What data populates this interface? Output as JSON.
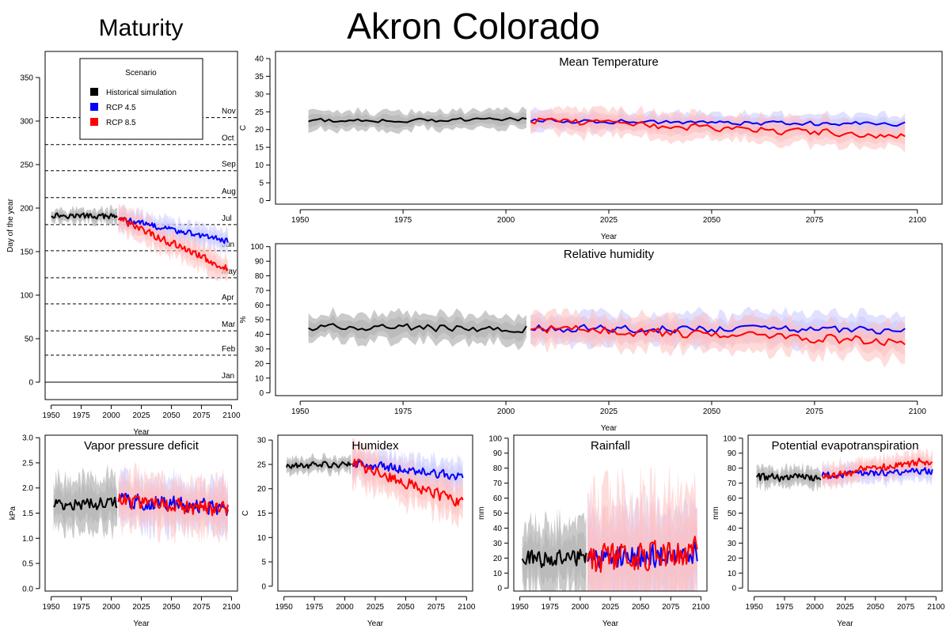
{
  "page": {
    "title": "Akron Colorado",
    "maturity_title": "Maturity"
  },
  "colors": {
    "historical": "#000000",
    "rcp45": "#0000ff",
    "rcp85": "#ff0000",
    "historical_band": "#b8b8b8",
    "rcp45_band": "#c8c8ff",
    "rcp85_band": "#ffc0c0"
  },
  "legend": {
    "title": "Scenario",
    "items": [
      {
        "key": "historical",
        "label": "Historical simulation"
      },
      {
        "key": "rcp45",
        "label": "RCP 4.5"
      },
      {
        "key": "rcp85",
        "label": "RCP 8.5"
      }
    ]
  },
  "chart_data": [
    {
      "id": "maturity",
      "type": "line",
      "title": "",
      "xlabel": "Year",
      "ylabel": "Day of the year",
      "xlim": [
        1945,
        2105
      ],
      "ylim": [
        -20,
        380
      ],
      "xticks": [
        1950,
        1975,
        2000,
        2025,
        2050,
        2075,
        2100
      ],
      "yticks": [
        0,
        50,
        100,
        150,
        200,
        250,
        300,
        350
      ],
      "month_lines": [
        {
          "label": "Jan",
          "day": 0
        },
        {
          "label": "Feb",
          "day": 31
        },
        {
          "label": "Mar",
          "day": 59
        },
        {
          "label": "Apr",
          "day": 90
        },
        {
          "label": "May",
          "day": 120
        },
        {
          "label": "Jun",
          "day": 151
        },
        {
          "label": "Jul",
          "day": 181
        },
        {
          "label": "Aug",
          "day": 212
        },
        {
          "label": "Sep",
          "day": 243
        },
        {
          "label": "Oct",
          "day": 273
        },
        {
          "label": "Nov",
          "day": 304
        }
      ],
      "series": [
        {
          "name": "Historical simulation",
          "key": "historical",
          "x_start": 1950,
          "x_end": 2005,
          "start": 192,
          "end": 190,
          "noise": 3,
          "band": 8
        },
        {
          "name": "RCP 4.5",
          "key": "rcp45",
          "x_start": 2006,
          "x_end": 2097,
          "start": 188,
          "end": 162,
          "noise": 3,
          "band": 12
        },
        {
          "name": "RCP 8.5",
          "key": "rcp85",
          "x_start": 2006,
          "x_end": 2097,
          "start": 188,
          "end": 130,
          "noise": 4,
          "band": 15
        }
      ]
    },
    {
      "id": "mean-temperature",
      "type": "line",
      "title": "Mean Temperature",
      "xlabel": "Year",
      "ylabel": "C",
      "xlim": [
        1944,
        2106
      ],
      "ylim": [
        -1,
        42
      ],
      "xticks": [
        1950,
        1975,
        2000,
        2025,
        2050,
        2075,
        2100
      ],
      "yticks": [
        0,
        5,
        10,
        15,
        20,
        25,
        30,
        35,
        40
      ],
      "series": [
        {
          "name": "Historical simulation",
          "key": "historical",
          "x_start": 1952,
          "x_end": 2005,
          "start": 22.5,
          "end": 22.8,
          "noise": 0.6,
          "band": 2.5
        },
        {
          "name": "RCP 4.5",
          "key": "rcp45",
          "x_start": 2006,
          "x_end": 2097,
          "start": 22.5,
          "end": 21.5,
          "noise": 0.6,
          "band": 2.5
        },
        {
          "name": "RCP 8.5",
          "key": "rcp85",
          "x_start": 2006,
          "x_end": 2097,
          "start": 22.5,
          "end": 18.2,
          "noise": 0.9,
          "band": 3.5
        }
      ]
    },
    {
      "id": "relative-humidity",
      "type": "line",
      "title": "Relative humidity",
      "xlabel": "Year",
      "ylabel": "%",
      "xlim": [
        1944,
        2106
      ],
      "ylim": [
        -2,
        102
      ],
      "xticks": [
        1950,
        1975,
        2000,
        2025,
        2050,
        2075,
        2100
      ],
      "yticks": [
        0,
        10,
        20,
        30,
        40,
        50,
        60,
        70,
        80,
        90,
        100
      ],
      "series": [
        {
          "name": "Historical simulation",
          "key": "historical",
          "x_start": 1952,
          "x_end": 2005,
          "start": 45,
          "end": 44,
          "noise": 2.5,
          "band": 9
        },
        {
          "name": "RCP 4.5",
          "key": "rcp45",
          "x_start": 2006,
          "x_end": 2097,
          "start": 44,
          "end": 43,
          "noise": 2.5,
          "band": 10
        },
        {
          "name": "RCP 8.5",
          "key": "rcp85",
          "x_start": 2006,
          "x_end": 2097,
          "start": 44,
          "end": 35,
          "noise": 3,
          "band": 11
        }
      ]
    },
    {
      "id": "vapor-pressure-deficit",
      "type": "line",
      "title": "Vapor pressure deficit",
      "xlabel": "Year",
      "ylabel": "kPa",
      "xlim": [
        1945,
        2105
      ],
      "ylim": [
        -0.05,
        3.05
      ],
      "xticks": [
        1950,
        1975,
        2000,
        2025,
        2050,
        2075,
        2100
      ],
      "yticks": [
        0.0,
        0.5,
        1.0,
        1.5,
        2.0,
        2.5,
        3.0
      ],
      "series": [
        {
          "name": "Historical simulation",
          "key": "historical",
          "x_start": 1952,
          "x_end": 2005,
          "start": 1.65,
          "end": 1.7,
          "noise": 0.12,
          "band": 0.5
        },
        {
          "name": "RCP 4.5",
          "key": "rcp45",
          "x_start": 2006,
          "x_end": 2097,
          "start": 1.75,
          "end": 1.6,
          "noise": 0.15,
          "band": 0.45
        },
        {
          "name": "RCP 8.5",
          "key": "rcp85",
          "x_start": 2006,
          "x_end": 2097,
          "start": 1.75,
          "end": 1.55,
          "noise": 0.15,
          "band": 0.5
        }
      ]
    },
    {
      "id": "humidex",
      "type": "line",
      "title": "Humidex",
      "xlabel": "Year",
      "ylabel": "C",
      "xlim": [
        1945,
        2105
      ],
      "ylim": [
        -1,
        31
      ],
      "xticks": [
        1950,
        1975,
        2000,
        2025,
        2050,
        2075,
        2100
      ],
      "yticks": [
        0,
        5,
        10,
        15,
        20,
        25,
        30
      ],
      "series": [
        {
          "name": "Historical simulation",
          "key": "historical",
          "x_start": 1952,
          "x_end": 2005,
          "start": 24.5,
          "end": 25.2,
          "noise": 0.6,
          "band": 1.5
        },
        {
          "name": "RCP 4.5",
          "key": "rcp45",
          "x_start": 2006,
          "x_end": 2097,
          "start": 25.3,
          "end": 22.5,
          "noise": 0.8,
          "band": 3
        },
        {
          "name": "RCP 8.5",
          "key": "rcp85",
          "x_start": 2006,
          "x_end": 2097,
          "start": 25.3,
          "end": 17,
          "noise": 1.1,
          "band": 4
        }
      ]
    },
    {
      "id": "rainfall",
      "type": "line",
      "title": "Rainfall",
      "xlabel": "Year",
      "ylabel": "mm",
      "xlim": [
        1945,
        2105
      ],
      "ylim": [
        -2,
        102
      ],
      "xticks": [
        1950,
        1975,
        2000,
        2025,
        2050,
        2075,
        2100
      ],
      "yticks": [
        0,
        10,
        20,
        30,
        40,
        50,
        60,
        70,
        80,
        90,
        100
      ],
      "series": [
        {
          "name": "Historical simulation",
          "key": "historical",
          "x_start": 1952,
          "x_end": 2005,
          "start": 20,
          "end": 20,
          "noise": 6,
          "band": 22
        },
        {
          "name": "RCP 4.5",
          "key": "rcp45",
          "x_start": 2006,
          "x_end": 2097,
          "start": 18,
          "end": 24,
          "noise": 7,
          "band": 30
        },
        {
          "name": "RCP 8.5",
          "key": "rcp85",
          "x_start": 2006,
          "x_end": 2097,
          "start": 18,
          "end": 25,
          "noise": 9,
          "band": 40
        }
      ]
    },
    {
      "id": "potential-evapotranspiration",
      "type": "line",
      "title": "Potential evapotranspiration",
      "xlabel": "Year",
      "ylabel": "mm",
      "xlim": [
        1945,
        2105
      ],
      "ylim": [
        -2,
        102
      ],
      "xticks": [
        1950,
        1975,
        2000,
        2025,
        2050,
        2075,
        2100
      ],
      "yticks": [
        0,
        10,
        20,
        30,
        40,
        50,
        60,
        70,
        80,
        90,
        100
      ],
      "series": [
        {
          "name": "Historical simulation",
          "key": "historical",
          "x_start": 1952,
          "x_end": 2005,
          "start": 74,
          "end": 74,
          "noise": 2.5,
          "band": 6
        },
        {
          "name": "RCP 4.5",
          "key": "rcp45",
          "x_start": 2006,
          "x_end": 2097,
          "start": 75,
          "end": 78,
          "noise": 2.2,
          "band": 6
        },
        {
          "name": "RCP 8.5",
          "key": "rcp85",
          "x_start": 2006,
          "x_end": 2097,
          "start": 75,
          "end": 85,
          "noise": 2.5,
          "band": 7
        }
      ]
    }
  ]
}
